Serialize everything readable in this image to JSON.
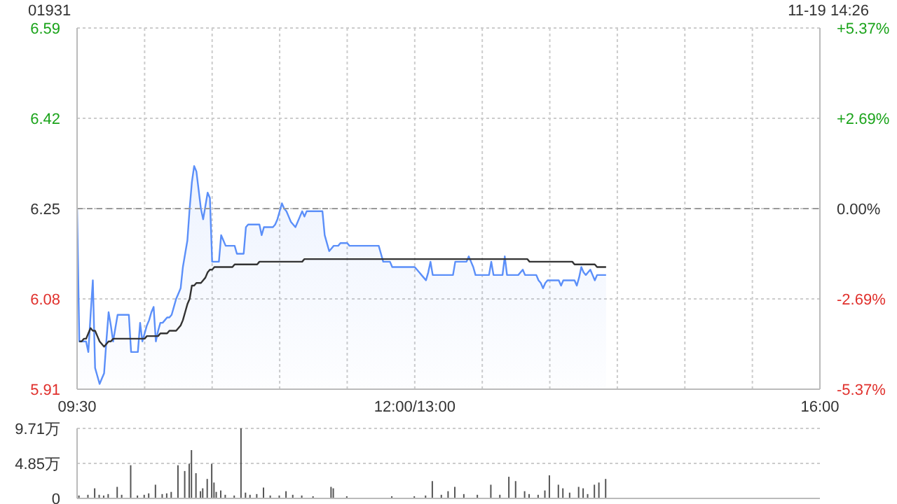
{
  "chart_data": [
    {
      "type": "area",
      "title": "01931",
      "subtitle": "11-19 14:26",
      "categories": [
        "09:30",
        null,
        null,
        null,
        null,
        null,
        null,
        null,
        null,
        null,
        null,
        null,
        null,
        null,
        null,
        null,
        null,
        null,
        null,
        null,
        null,
        null,
        null,
        null,
        null,
        null,
        null,
        null,
        null,
        null,
        null,
        null,
        null,
        null,
        null,
        null,
        null,
        null,
        null,
        null,
        null,
        null,
        null,
        null,
        null,
        null,
        null,
        null,
        null,
        null,
        null,
        null,
        null,
        null,
        null,
        null,
        null,
        null,
        null,
        null,
        null,
        null,
        null,
        null,
        null,
        null,
        null,
        null,
        null,
        null,
        null,
        null,
        null,
        null,
        null,
        null,
        null,
        null,
        null,
        null,
        null,
        null,
        null,
        null,
        null,
        null,
        null,
        null,
        null,
        null,
        null,
        null,
        null,
        null,
        null,
        null,
        null,
        null,
        null,
        null,
        null,
        null,
        null,
        null,
        null,
        null,
        null,
        null,
        null,
        null,
        null,
        null,
        null,
        null,
        null,
        null,
        null,
        null,
        null,
        null,
        null,
        null,
        null,
        null,
        null,
        null,
        null,
        null,
        null,
        null,
        null,
        null,
        null,
        null,
        null,
        null,
        null,
        null,
        null,
        null,
        null,
        null,
        null,
        null,
        null,
        null,
        null,
        null,
        null,
        null,
        "12:00/13:00",
        null,
        null,
        null,
        null,
        null,
        null,
        null,
        null,
        null,
        null,
        null,
        null,
        null,
        null,
        null,
        null,
        null,
        null,
        null,
        null,
        null,
        null,
        null,
        null,
        null,
        null,
        null,
        null,
        null,
        null,
        null,
        null,
        null,
        null,
        null,
        null,
        null,
        null,
        null,
        null,
        null,
        null,
        null,
        null,
        null,
        null,
        null,
        null,
        null,
        null,
        null,
        null,
        null,
        null,
        null,
        null,
        null,
        null,
        null,
        null,
        null,
        null,
        null,
        null,
        null,
        null,
        null,
        null,
        null,
        null,
        null,
        null,
        null,
        null,
        null,
        null,
        null,
        null,
        null,
        null,
        null,
        null,
        null,
        null,
        null,
        null,
        null,
        null,
        null,
        null,
        null,
        null,
        null,
        null,
        null,
        null,
        null,
        null,
        null,
        null,
        null,
        null,
        null,
        null,
        null,
        null,
        null,
        null,
        null,
        null,
        null,
        null,
        null,
        null,
        null,
        null,
        null,
        null,
        null,
        null,
        null,
        null,
        null,
        null,
        null,
        null,
        null,
        null,
        null,
        null,
        null,
        null,
        null,
        null,
        null,
        null,
        null,
        null,
        null,
        null,
        null,
        null,
        null,
        null,
        null,
        null,
        null,
        null,
        null,
        null,
        null,
        null,
        null,
        null,
        null,
        null,
        null,
        null,
        null,
        null,
        null,
        null,
        null,
        null,
        null,
        null,
        null,
        null,
        null,
        null,
        null,
        null,
        null,
        null,
        null,
        null,
        null,
        null,
        null,
        "16:00"
      ],
      "ylim": [
        5.91,
        6.59
      ],
      "yticks": [
        5.91,
        6.08,
        6.25,
        6.42,
        6.59
      ],
      "y2lim": [
        -5.37,
        5.37
      ],
      "y2ticks": [
        {
          "value": -5.37,
          "label": "-5.37%"
        },
        {
          "value": -2.69,
          "label": "-2.69%"
        },
        {
          "value": 0,
          "label": "0.00%"
        },
        {
          "value": 2.69,
          "label": "+2.69%"
        },
        {
          "value": 5.37,
          "label": "+5.37%"
        }
      ],
      "grid": true,
      "marker": "none",
      "ref_lines": [
        {
          "axis": "y",
          "value": 6.25,
          "color": "#999999",
          "line_style": "dashed"
        }
      ],
      "series": [
        {
          "color": "#5b8ff9",
          "values": [
            6.25,
            6.0,
            6.0,
            6.0,
            6.0,
            5.98,
            6.05,
            6.115,
            5.95,
            5.935,
            5.92,
            5.93,
            5.94,
            6.0,
            6.055,
            6.03,
            6.0,
            6.025,
            6.05,
            6.05,
            6.05,
            6.05,
            6.05,
            6.05,
            5.98,
            5.98,
            5.98,
            5.98,
            6.035,
            6.0,
            6.015,
            6.03,
            6.04,
            6.055,
            6.065,
            6.0,
            6.02,
            6.035,
            6.035,
            6.04,
            6.045,
            6.045,
            6.05,
            6.065,
            6.08,
            6.09,
            6.1,
            6.14,
            6.165,
            6.19,
            6.25,
            6.3,
            6.33,
            6.32,
            6.285,
            6.25,
            6.23,
            6.255,
            6.28,
            6.27,
            6.15,
            6.15,
            6.15,
            6.15,
            6.2,
            6.19,
            6.18,
            6.18,
            6.18,
            6.18,
            6.18,
            6.165,
            6.165,
            6.165,
            6.165,
            6.215,
            6.22,
            6.22,
            6.22,
            6.22,
            6.22,
            6.22,
            6.2,
            6.215,
            6.215,
            6.215,
            6.215,
            6.215,
            6.22,
            6.23,
            6.245,
            6.26,
            6.25,
            6.245,
            6.235,
            6.225,
            6.22,
            6.215,
            6.225,
            6.235,
            6.245,
            6.235,
            6.245,
            6.245,
            6.245,
            6.245,
            6.245,
            6.245,
            6.245,
            6.245,
            6.2,
            6.185,
            6.17,
            6.175,
            6.18,
            6.18,
            6.18,
            6.185,
            6.185,
            6.185,
            6.185,
            6.18,
            6.18,
            6.18,
            6.18,
            6.18,
            6.18,
            6.18,
            6.18,
            6.18,
            6.18,
            6.18,
            6.18,
            6.18,
            6.18,
            6.165,
            6.15,
            6.15,
            6.15,
            6.15,
            6.14,
            6.14,
            6.14,
            6.14,
            6.14,
            6.14,
            6.14,
            6.14,
            6.14,
            6.14,
            6.14,
            6.135,
            6.13,
            6.125,
            6.12,
            6.115,
            6.13,
            6.15,
            6.125,
            6.125,
            6.125,
            6.125,
            6.125,
            6.125,
            6.125,
            6.125,
            6.125,
            6.125,
            6.15,
            6.15,
            6.15,
            6.15,
            6.15,
            6.15,
            6.16,
            6.15,
            6.14,
            6.125,
            6.125,
            6.125,
            6.125,
            6.125,
            6.125,
            6.125,
            6.15,
            6.125,
            6.125,
            6.125,
            6.125,
            6.125,
            6.16,
            6.125,
            6.125,
            6.125,
            6.125,
            6.125,
            6.125,
            6.13,
            6.135,
            6.125,
            6.125,
            6.125,
            6.125,
            6.125,
            6.125,
            6.115,
            6.11,
            6.1,
            6.11,
            6.115,
            6.115,
            6.115,
            6.115,
            6.115,
            6.115,
            6.105,
            6.115,
            6.115,
            6.115,
            6.115,
            6.115,
            6.115,
            6.105,
            6.12,
            6.14,
            6.13,
            6.125,
            6.13,
            6.135,
            6.125,
            6.115,
            6.125,
            6.125,
            6.125,
            6.125,
            6.125,
            null,
            null,
            null,
            null,
            null,
            null,
            null,
            null,
            null,
            null,
            null,
            null,
            null,
            null,
            null,
            null,
            null,
            null,
            null,
            null,
            null,
            null,
            null,
            null,
            null,
            null,
            null,
            null,
            null,
            null,
            null,
            null,
            null,
            null,
            null,
            null,
            null,
            null,
            null,
            null,
            null,
            null,
            null,
            null,
            null,
            null,
            null,
            null,
            null,
            null,
            null,
            null,
            null,
            null,
            null,
            null,
            null,
            null,
            null,
            null,
            null,
            null,
            null,
            null,
            null,
            null,
            null,
            null,
            null,
            null,
            null,
            null,
            null,
            null,
            null,
            null,
            null,
            null,
            null,
            null,
            null,
            null,
            null,
            null,
            null,
            null,
            null,
            null,
            null,
            null,
            null,
            null,
            null,
            null,
            null
          ]
        },
        {
          "type": "line",
          "color": "#333333",
          "values": [
            null,
            6.0,
            6.0,
            6.005,
            6.005,
            6.015,
            6.025,
            6.02,
            6.02,
            6.01,
            6.0,
            5.995,
            5.99,
            5.995,
            6.0,
            6.0,
            6.005,
            6.005,
            6.005,
            6.005,
            6.005,
            6.005,
            6.005,
            6.005,
            6.005,
            6.005,
            6.005,
            6.005,
            6.005,
            6.005,
            6.005,
            6.01,
            6.01,
            6.01,
            6.01,
            6.01,
            6.01,
            6.015,
            6.015,
            6.015,
            6.015,
            6.02,
            6.02,
            6.02,
            6.02,
            6.025,
            6.03,
            6.04,
            6.055,
            6.07,
            6.08,
            6.105,
            6.105,
            6.11,
            6.11,
            6.11,
            6.115,
            6.12,
            6.13,
            6.135,
            6.135,
            6.14,
            6.14,
            6.14,
            6.14,
            6.14,
            6.14,
            6.14,
            6.14,
            6.14,
            6.145,
            6.145,
            6.145,
            6.145,
            6.145,
            6.145,
            6.145,
            6.145,
            6.145,
            6.145,
            6.145,
            6.15,
            6.15,
            6.15,
            6.15,
            6.15,
            6.15,
            6.15,
            6.15,
            6.15,
            6.15,
            6.15,
            6.15,
            6.15,
            6.15,
            6.15,
            6.15,
            6.15,
            6.15,
            6.15,
            6.15,
            6.155,
            6.155,
            6.155,
            6.155,
            6.155,
            6.155,
            6.155,
            6.155,
            6.155,
            6.155,
            6.155,
            6.155,
            6.155,
            6.155,
            6.155,
            6.155,
            6.155,
            6.155,
            6.155,
            6.155,
            6.155,
            6.155,
            6.155,
            6.155,
            6.155,
            6.155,
            6.155,
            6.155,
            6.155,
            6.155,
            6.155,
            6.155,
            6.155,
            6.155,
            6.155,
            6.155,
            6.155,
            6.155,
            6.155,
            6.155,
            6.155,
            6.155,
            6.155,
            6.155,
            6.155,
            6.155,
            6.155,
            6.155,
            6.155,
            6.155,
            6.155,
            6.155,
            6.155,
            6.155,
            6.155,
            6.155,
            6.155,
            6.155,
            6.155,
            6.155,
            6.155,
            6.155,
            6.155,
            6.155,
            6.155,
            6.155,
            6.155,
            6.155,
            6.155,
            6.155,
            6.155,
            6.155,
            6.155,
            6.155,
            6.155,
            6.155,
            6.155,
            6.155,
            6.155,
            6.155,
            6.155,
            6.155,
            6.155,
            6.155,
            6.155,
            6.155,
            6.155,
            6.155,
            6.155,
            6.155,
            6.155,
            6.155,
            6.155,
            6.155,
            6.155,
            6.155,
            6.155,
            6.155,
            6.155,
            6.155,
            6.15,
            6.15,
            6.15,
            6.15,
            6.15,
            6.15,
            6.15,
            6.15,
            6.15,
            6.15,
            6.15,
            6.15,
            6.15,
            6.15,
            6.15,
            6.15,
            6.15,
            6.15,
            6.15,
            6.15,
            6.145,
            6.145,
            6.145,
            6.145,
            6.145,
            6.145,
            6.145,
            6.145,
            6.145,
            6.145,
            6.14,
            6.14,
            6.14,
            6.14,
            6.14,
            null,
            null,
            null,
            null,
            null,
            null,
            null,
            null,
            null,
            null,
            null,
            null,
            null,
            null,
            null,
            null,
            null,
            null,
            null,
            null,
            null,
            null,
            null,
            null,
            null,
            null,
            null,
            null,
            null,
            null,
            null,
            null,
            null,
            null,
            null,
            null,
            null,
            null,
            null,
            null,
            null,
            null,
            null,
            null,
            null,
            null,
            null,
            null,
            null,
            null,
            null,
            null,
            null,
            null,
            null,
            null,
            null,
            null,
            null,
            null,
            null,
            null,
            null,
            null,
            null,
            null,
            null,
            null,
            null,
            null,
            null,
            null,
            null,
            null,
            null,
            null,
            null,
            null,
            null,
            null,
            null,
            null,
            null,
            null,
            null,
            null,
            null,
            null,
            null,
            null,
            null,
            null,
            null,
            null,
            null
          ]
        }
      ]
    },
    {
      "type": "bar",
      "categories": [
        null,
        null,
        null,
        null,
        null,
        null,
        null,
        null,
        null,
        null,
        null,
        null,
        null,
        null,
        null,
        null,
        null,
        null,
        null,
        null,
        null,
        null,
        null,
        null,
        null,
        null,
        null,
        null,
        null,
        null,
        null,
        null,
        null,
        null,
        null,
        null,
        null,
        null,
        null,
        null,
        null,
        null,
        null,
        null,
        null,
        null,
        null,
        null,
        null,
        null,
        null,
        null,
        null,
        null,
        null,
        null,
        null,
        null,
        null,
        null,
        null,
        null,
        null,
        null,
        null,
        null,
        null,
        null,
        null,
        null,
        null,
        null,
        null,
        null,
        null,
        null,
        null,
        null,
        null,
        null,
        null,
        null,
        null,
        null,
        null,
        null,
        null,
        null,
        null,
        null,
        null,
        null,
        null,
        null,
        null,
        null,
        null,
        null,
        null,
        null,
        null,
        null,
        null,
        null,
        null,
        null,
        null,
        null,
        null,
        null,
        null,
        null,
        null,
        null,
        null,
        null,
        null,
        null,
        null,
        null,
        null,
        null,
        null,
        null,
        null,
        null,
        null,
        null,
        null,
        null,
        null,
        null,
        null,
        null,
        null,
        null,
        null,
        null,
        null,
        null,
        null,
        null,
        null,
        null,
        null,
        null,
        null,
        null,
        null,
        null,
        null,
        null,
        null,
        null,
        null,
        null,
        null,
        null,
        null,
        null,
        null,
        null,
        null,
        null,
        null,
        null,
        null,
        null,
        null,
        null,
        null,
        null,
        null,
        null,
        null,
        null,
        null,
        null,
        null,
        null,
        null,
        null,
        null,
        null,
        null,
        null,
        null,
        null,
        null,
        null,
        null,
        null,
        null,
        null,
        null,
        null,
        null,
        null,
        null,
        null,
        null,
        null,
        null,
        null,
        null,
        null,
        null,
        null,
        null,
        null,
        null,
        null,
        null,
        null,
        null,
        null,
        null,
        null,
        null,
        null,
        null,
        null,
        null,
        null,
        null,
        null,
        null,
        null,
        null,
        null,
        null,
        null,
        null,
        null,
        null,
        null,
        null,
        null,
        null,
        null,
        null,
        null,
        null,
        null,
        null,
        null,
        null,
        null,
        null,
        null,
        null,
        null,
        null,
        null,
        null,
        null,
        null,
        null,
        null,
        null,
        null,
        null,
        null,
        null,
        null,
        null,
        null,
        null,
        null,
        null,
        null,
        null,
        null,
        null,
        null,
        null,
        null,
        null,
        null,
        null,
        null,
        null,
        null,
        null,
        null,
        null,
        null,
        null,
        null,
        null,
        null,
        null,
        null,
        null,
        null,
        null,
        null,
        null,
        null,
        null,
        null,
        null,
        null,
        null,
        null,
        null,
        null,
        null,
        null,
        null,
        null,
        null,
        null,
        null,
        null,
        null,
        null,
        null,
        null,
        null,
        null,
        null,
        null,
        null,
        null,
        null,
        null,
        null,
        null,
        null,
        null
      ],
      "ylim": [
        0,
        9.71
      ],
      "yticks": [
        0,
        {
          "value": 4.85,
          "label": "4.85万"
        },
        {
          "value": 9.71,
          "label": "9.71万"
        }
      ],
      "grid": "y",
      "tick_labels": "y",
      "series": [
        {
          "color": "#555555",
          "values": [
            null,
            0.4,
            null,
            null,
            null,
            0.5,
            null,
            null,
            1.4,
            null,
            0.5,
            null,
            0.4,
            null,
            0.6,
            null,
            null,
            null,
            1.6,
            null,
            0.5,
            null,
            null,
            null,
            4.6,
            null,
            null,
            0.4,
            null,
            null,
            0.5,
            null,
            0.7,
            null,
            null,
            1.9,
            null,
            null,
            0.6,
            null,
            0.7,
            null,
            0.9,
            null,
            null,
            4.6,
            null,
            null,
            3.8,
            null,
            4.8,
            6.7,
            null,
            3.5,
            null,
            1.0,
            1.4,
            null,
            2.7,
            null,
            4.8,
            2.2,
            0.9,
            null,
            1.1,
            null,
            0.5,
            null,
            null,
            null,
            0.4,
            null,
            null,
            9.71,
            null,
            0.8,
            null,
            0.5,
            null,
            null,
            0.6,
            null,
            null,
            1.5,
            null,
            null,
            0.4,
            null,
            null,
            null,
            0.4,
            null,
            null,
            1.0,
            null,
            null,
            0.5,
            null,
            null,
            null,
            0.4,
            null,
            null,
            null,
            null,
            0.3,
            null,
            null,
            null,
            null,
            null,
            null,
            null,
            1.6,
            1.4,
            null,
            null,
            null,
            null,
            null,
            0.3,
            null,
            null,
            null,
            null,
            null,
            null,
            null,
            null,
            null,
            null,
            null,
            null,
            null,
            null,
            null,
            null,
            null,
            null,
            null,
            0.3,
            null,
            null,
            null,
            null,
            null,
            null,
            null,
            null,
            null,
            0.3,
            null,
            null,
            null,
            null,
            0.4,
            null,
            null,
            2.4,
            null,
            null,
            null,
            0.5,
            null,
            null,
            1.0,
            null,
            null,
            1.6,
            null,
            null,
            null,
            0.6,
            null,
            null,
            null,
            null,
            null,
            0.5,
            null,
            null,
            null,
            null,
            null,
            1.9,
            null,
            null,
            null,
            0.5,
            null,
            null,
            null,
            3.0,
            null,
            null,
            2.4,
            null,
            null,
            null,
            1.0,
            null,
            0.6,
            null,
            null,
            null,
            0.5,
            null,
            null,
            1.1,
            null,
            3.2,
            null,
            null,
            null,
            1.9,
            null,
            1.4,
            null,
            null,
            0.8,
            null,
            null,
            null,
            1.6,
            null,
            1.4,
            null,
            0.6,
            null,
            null,
            1.9,
            null,
            2.2,
            null,
            null,
            2.7,
            null,
            null,
            null,
            null,
            null,
            null,
            null,
            null,
            null,
            null,
            null,
            null,
            null,
            null,
            null,
            null,
            null,
            null,
            null,
            null,
            null,
            null,
            null,
            null,
            null,
            null,
            null,
            null,
            null,
            null,
            null,
            null,
            null,
            null,
            null,
            null,
            null,
            null,
            null,
            null,
            null,
            null,
            null,
            null,
            null,
            null,
            null,
            null,
            null,
            null,
            null,
            null,
            null,
            null,
            null,
            null,
            null,
            null,
            null,
            null,
            null,
            null,
            null,
            null,
            null,
            null,
            null,
            null,
            null,
            null,
            null,
            null,
            null,
            null,
            null,
            null,
            null,
            null,
            null,
            null,
            null,
            null,
            null,
            null,
            null,
            null,
            null,
            null,
            null,
            null,
            null,
            null,
            null,
            null,
            null
          ]
        }
      ]
    }
  ]
}
